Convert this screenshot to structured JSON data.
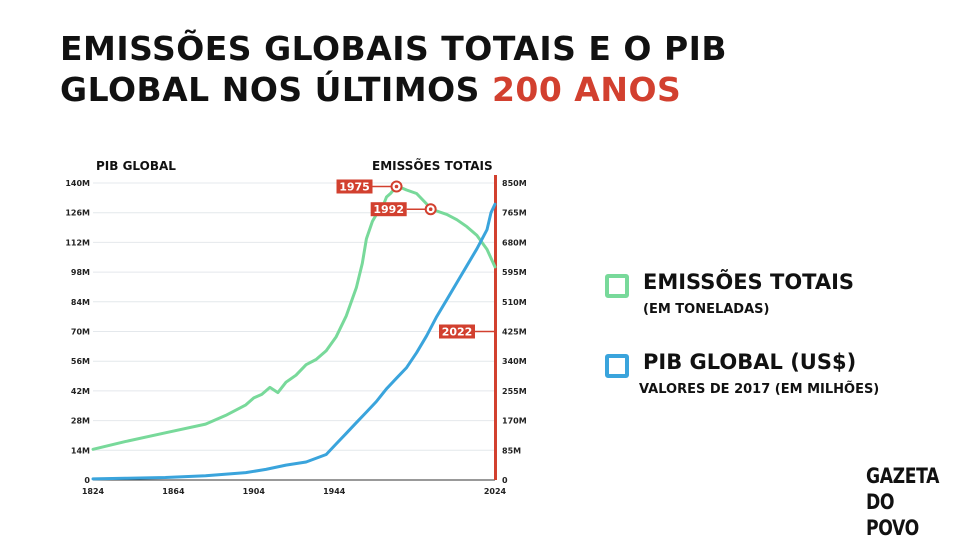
{
  "header": {
    "title_main": "EMISSÕES GLOBAIS TOTAIS E O PIB GLOBAL NOS ÚLTIMOS",
    "title_highlight": "200 ANOS"
  },
  "legend": {
    "emissions_label": "EMISSÕES TOTAIS",
    "emissions_sub": "(EM TONELADAS)",
    "gdp_label": "PIB GLOBAL (US$)",
    "gdp_sub": "VALORES DE 2017 (EM MILHÕES)"
  },
  "brand": {
    "line1": "GAZETA",
    "line2": "DO POVO"
  },
  "colors": {
    "emissions": "#78d99a",
    "gdp": "#3aa4dc",
    "accent": "#d2402f",
    "text": "#111111"
  },
  "chart_data": {
    "type": "line",
    "left_axis_title": "PIB GLOBAL",
    "right_axis_title": "EMISSÕES TOTAIS",
    "xlim": [
      1824,
      2024
    ],
    "ylim_left": [
      0,
      140
    ],
    "ylim_right": [
      0,
      850
    ],
    "x_ticks": [
      "1824",
      "1864",
      "1904",
      "1944",
      "2024"
    ],
    "x_tick_values": [
      1824,
      1864,
      1904,
      1944,
      2024
    ],
    "left_ticks": [
      "0",
      "14M",
      "28M",
      "42M",
      "56M",
      "70M",
      "84M",
      "98M",
      "112M",
      "126M",
      "140M"
    ],
    "right_ticks": [
      "0",
      "85M",
      "170M",
      "255M",
      "340M",
      "425M",
      "510M",
      "595M",
      "680M",
      "765M",
      "850M"
    ],
    "series": [
      {
        "name": "EMISSÕES TOTAIS",
        "axis": "right",
        "x": [
          1824,
          1840,
          1860,
          1880,
          1890,
          1900,
          1904,
          1908,
          1912,
          1916,
          1920,
          1925,
          1930,
          1935,
          1940,
          1945,
          1950,
          1955,
          1958,
          1960,
          1963,
          1965,
          1968,
          1970,
          1972,
          1975,
          1978,
          1980,
          1985,
          1990,
          1992,
          1995,
          2000,
          2005,
          2010,
          2015,
          2020,
          2024
        ],
        "y": [
          88,
          110,
          135,
          160,
          185,
          215,
          235,
          245,
          265,
          250,
          280,
          300,
          330,
          345,
          370,
          410,
          470,
          550,
          620,
          690,
          740,
          760,
          780,
          810,
          820,
          840,
          835,
          830,
          820,
          790,
          775,
          770,
          760,
          745,
          725,
          700,
          660,
          610
        ]
      },
      {
        "name": "PIB GLOBAL (US$)",
        "axis": "left",
        "x": [
          1824,
          1840,
          1860,
          1880,
          1900,
          1910,
          1920,
          1930,
          1940,
          1945,
          1950,
          1955,
          1960,
          1965,
          1970,
          1975,
          1980,
          1985,
          1990,
          1995,
          2000,
          2005,
          2010,
          2015,
          2020,
          2022,
          2024
        ],
        "y": [
          0.5,
          0.8,
          1.2,
          2.0,
          3.5,
          5.0,
          7.0,
          8.5,
          12,
          17,
          22,
          27,
          32,
          37,
          43,
          48,
          53,
          60,
          68,
          77,
          85,
          93,
          101,
          109,
          118,
          126,
          130
        ]
      }
    ],
    "annotations": [
      {
        "label": "1975",
        "x": 1975,
        "y": 840,
        "axis": "right"
      },
      {
        "label": "1992",
        "x": 1992,
        "y": 775,
        "axis": "right"
      },
      {
        "label": "2022",
        "y": 425,
        "axis": "right"
      }
    ],
    "grid": true
  }
}
